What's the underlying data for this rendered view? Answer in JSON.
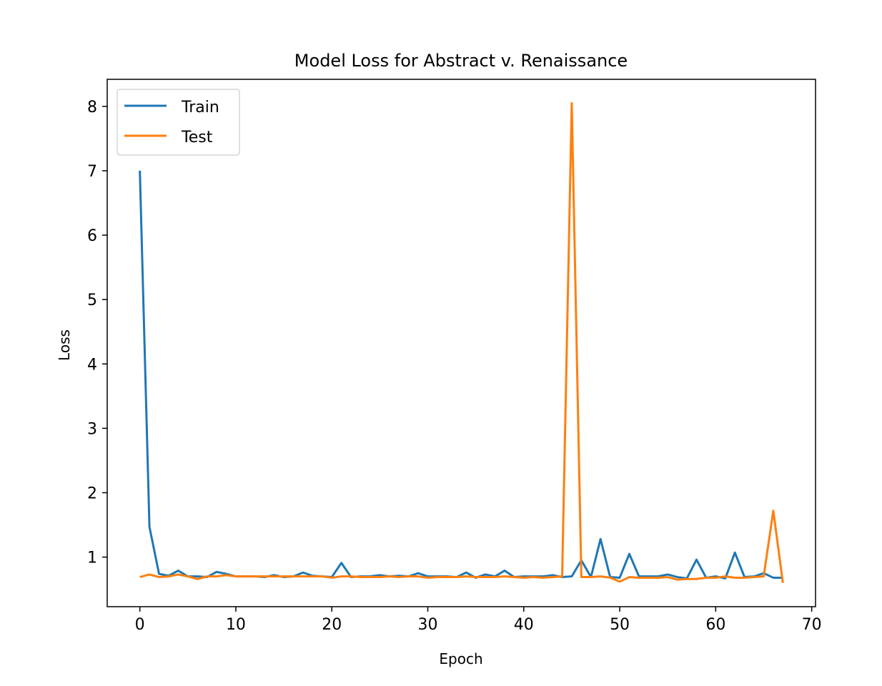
{
  "chart_data": {
    "type": "line",
    "title": "Model Loss for Abstract v. Renaissance",
    "xlabel": "Epoch",
    "ylabel": "Loss",
    "xlim": [
      -3.4,
      70.4
    ],
    "ylim": [
      0.23,
      8.42
    ],
    "xticks": [
      0,
      10,
      20,
      30,
      40,
      50,
      60,
      70
    ],
    "yticks": [
      1,
      2,
      3,
      4,
      5,
      6,
      7,
      8
    ],
    "grid": false,
    "legend_position": "top-left",
    "x": [
      0,
      1,
      2,
      3,
      4,
      5,
      6,
      7,
      8,
      9,
      10,
      11,
      12,
      13,
      14,
      15,
      16,
      17,
      18,
      19,
      20,
      21,
      22,
      23,
      24,
      25,
      26,
      27,
      28,
      29,
      30,
      31,
      32,
      33,
      34,
      35,
      36,
      37,
      38,
      39,
      40,
      41,
      42,
      43,
      44,
      45,
      46,
      47,
      48,
      49,
      50,
      51,
      52,
      53,
      54,
      55,
      56,
      57,
      58,
      59,
      60,
      61,
      62,
      63,
      64,
      65,
      66,
      67
    ],
    "series": [
      {
        "name": "Train",
        "color": "#1f77b4",
        "values": [
          7.0,
          1.47,
          0.74,
          0.71,
          0.79,
          0.7,
          0.7,
          0.69,
          0.77,
          0.74,
          0.7,
          0.7,
          0.7,
          0.69,
          0.72,
          0.69,
          0.7,
          0.76,
          0.71,
          0.7,
          0.69,
          0.91,
          0.69,
          0.7,
          0.7,
          0.72,
          0.7,
          0.71,
          0.7,
          0.75,
          0.7,
          0.7,
          0.7,
          0.69,
          0.76,
          0.68,
          0.73,
          0.7,
          0.79,
          0.69,
          0.7,
          0.7,
          0.7,
          0.72,
          0.69,
          0.7,
          0.95,
          0.69,
          1.28,
          0.69,
          0.68,
          1.05,
          0.7,
          0.7,
          0.7,
          0.73,
          0.69,
          0.67,
          0.96,
          0.68,
          0.7,
          0.67,
          1.07,
          0.69,
          0.7,
          0.75,
          0.68,
          0.68
        ]
      },
      {
        "name": "Test",
        "color": "#ff7f0e",
        "values": [
          0.69,
          0.73,
          0.69,
          0.7,
          0.73,
          0.7,
          0.66,
          0.7,
          0.7,
          0.72,
          0.7,
          0.7,
          0.7,
          0.7,
          0.7,
          0.7,
          0.7,
          0.7,
          0.7,
          0.7,
          0.68,
          0.7,
          0.7,
          0.69,
          0.69,
          0.69,
          0.7,
          0.69,
          0.7,
          0.7,
          0.68,
          0.69,
          0.69,
          0.69,
          0.7,
          0.69,
          0.69,
          0.69,
          0.7,
          0.69,
          0.68,
          0.69,
          0.68,
          0.69,
          0.7,
          8.05,
          0.69,
          0.69,
          0.7,
          0.68,
          0.62,
          0.69,
          0.68,
          0.68,
          0.68,
          0.69,
          0.65,
          0.66,
          0.66,
          0.68,
          0.68,
          0.7,
          0.68,
          0.68,
          0.69,
          0.7,
          1.72,
          0.6
        ]
      }
    ]
  }
}
